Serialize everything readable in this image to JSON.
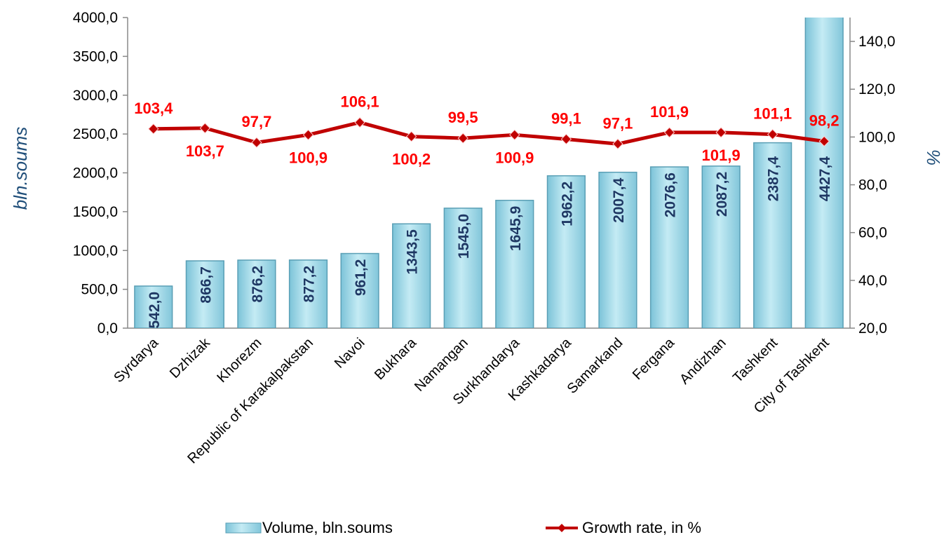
{
  "chart_data": {
    "type": "bar",
    "categories": [
      "Syrdarya",
      "Dzhizak",
      "Khorezm",
      "Republic of Karakalpakstan",
      "Navoi",
      "Bukhara",
      "Namangan",
      "Surkhandarya",
      "Kashkadarya",
      "Samarkand",
      "Fergana",
      "Andizhan",
      "Tashkent",
      "City of Tashkent"
    ],
    "ylabel": "bln.soums",
    "y2label": "%",
    "ylim": [
      0,
      4000
    ],
    "yticks": [
      {
        "value": 0,
        "label": "0,0"
      },
      {
        "value": 500,
        "label": "500,0"
      },
      {
        "value": 1000,
        "label": "1000,0"
      },
      {
        "value": 1500,
        "label": "1500,0"
      },
      {
        "value": 2000,
        "label": "2000,0"
      },
      {
        "value": 2500,
        "label": "2500,0"
      },
      {
        "value": 3000,
        "label": "3000,0"
      },
      {
        "value": 3500,
        "label": "3500,0"
      },
      {
        "value": 4000,
        "label": "4000,0"
      }
    ],
    "y2lim": [
      20,
      150
    ],
    "y2ticks": [
      {
        "value": 20,
        "label": "20,0"
      },
      {
        "value": 40,
        "label": "40,0"
      },
      {
        "value": 60,
        "label": "60,0"
      },
      {
        "value": 80,
        "label": "80,0"
      },
      {
        "value": 100,
        "label": "100,0"
      },
      {
        "value": 120,
        "label": "120,0"
      },
      {
        "value": 140,
        "label": "140,0"
      }
    ],
    "legend": "bottom",
    "series": [
      {
        "name": "Volume, bln.soums",
        "type": "bar",
        "color": "#9ed6e6",
        "values": [
          542.0,
          866.7,
          876.2,
          877.2,
          961.2,
          1343.5,
          1545.0,
          1645.9,
          1962.2,
          2007.4,
          2076.6,
          2087.2,
          2387.4,
          4427.4
        ],
        "value_labels": [
          "542,0",
          "866,7",
          "876,2",
          "877,2",
          "961,2",
          "1343,5",
          "1545,0",
          "1645,9",
          "1962,2",
          "2007,4",
          "2076,6",
          "2087,2",
          "2387,4",
          "4427,4"
        ]
      },
      {
        "name": "Growth rate, in %",
        "type": "line",
        "axis": "y2",
        "color": "#c00000",
        "values": [
          103.4,
          103.7,
          97.7,
          100.9,
          106.1,
          100.2,
          99.5,
          100.9,
          99.1,
          97.1,
          101.9,
          101.9,
          101.1,
          98.2
        ],
        "value_labels": [
          "103,4",
          "103,7",
          "97,7",
          "100,9",
          "106,1",
          "100,2",
          "99,5",
          "100,9",
          "99,1",
          "97,1",
          "101,9",
          "101,9",
          "101,1",
          "98,2"
        ]
      }
    ]
  }
}
